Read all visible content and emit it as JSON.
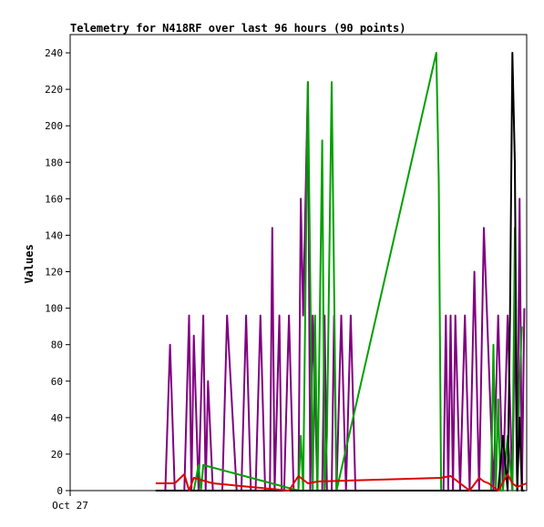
{
  "chart_data": {
    "type": "line",
    "title": "Telemetry for N418RF over last 96 hours (90 points)",
    "xlabel": "",
    "ylabel": "Values",
    "ylim": [
      0,
      250
    ],
    "y_ticks": [
      0,
      20,
      40,
      60,
      80,
      100,
      120,
      140,
      160,
      180,
      200,
      220,
      240
    ],
    "x_tick_labels": [
      "Oct 27"
    ],
    "x_axis_note": "x values are hours elapsed within the 96-hour window; only the Oct 27 tick is labeled",
    "xlim": [
      0,
      96
    ],
    "grid": false,
    "legend": "none",
    "series": [
      {
        "color": "#800080",
        "x": [
          18.0,
          20.0,
          21.0,
          22.0,
          24.0,
          25.0,
          25.5,
          26.0,
          27.0,
          28.0,
          28.5,
          29.0,
          30.0,
          32.0,
          33.0,
          35.0,
          36.0,
          37.0,
          38.0,
          39.0,
          40.0,
          41.0,
          42.0,
          42.5,
          43.0,
          44.0,
          44.5,
          45.0,
          46.0,
          47.0,
          48.0,
          48.5,
          49.0,
          50.0,
          50.5,
          51.0,
          52.0,
          53.0,
          53.5,
          54.0,
          55.0,
          55.5,
          56.0,
          57.0,
          58.0,
          59.0,
          60.0,
          78.5,
          79.0,
          79.5,
          80.0,
          80.5,
          81.0,
          82.0,
          83.0,
          84.0,
          85.0,
          86.0,
          87.0,
          89.0,
          90.0,
          91.0,
          92.0,
          93.0,
          93.5,
          94.0,
          94.5,
          95.0,
          95.5
        ],
        "values": [
          0,
          0,
          80,
          0,
          0,
          96,
          0,
          85,
          0,
          96,
          0,
          60,
          0,
          0,
          96,
          0,
          0,
          96,
          0,
          0,
          96,
          0,
          0,
          144,
          0,
          96,
          0,
          0,
          96,
          0,
          0,
          160,
          96,
          224,
          0,
          96,
          0,
          0,
          96,
          0,
          0,
          96,
          0,
          96,
          0,
          96,
          0,
          0,
          96,
          0,
          96,
          0,
          96,
          0,
          96,
          0,
          120,
          0,
          144,
          0,
          96,
          0,
          96,
          0,
          96,
          0,
          160,
          0,
          100
        ]
      },
      {
        "color": "#00a000",
        "x": [
          26.0,
          27.0,
          27.5,
          28.0,
          48.0,
          48.5,
          49.0,
          50.0,
          51.0,
          51.5,
          52.0,
          53.0,
          53.5,
          54.0,
          55.0,
          56.0,
          77.0,
          77.5,
          78.0,
          88.5,
          89.0,
          89.5,
          90.0,
          90.5,
          91.0,
          92.0,
          93.0,
          93.5,
          94.0,
          94.5,
          95.0
        ],
        "values": [
          0,
          14,
          0,
          14,
          0,
          30,
          0,
          224,
          0,
          96,
          0,
          192,
          0,
          30,
          224,
          0,
          240,
          170,
          0,
          0,
          80,
          0,
          50,
          0,
          0,
          30,
          0,
          144,
          0,
          60,
          90
        ]
      },
      {
        "color": "#000000",
        "x": [
          18.0,
          88.0,
          89.0,
          90.0,
          91.0,
          92.0,
          92.5,
          93.0,
          93.5,
          94.0,
          94.5,
          95.0,
          95.5
        ],
        "values": [
          0,
          0,
          0,
          0,
          30,
          0,
          96,
          240,
          180,
          0,
          40,
          0,
          0
        ]
      },
      {
        "color": "#dd0000",
        "x": [
          18.0,
          22.0,
          24.0,
          25.0,
          26.0,
          30.0,
          46.0,
          48.0,
          50.0,
          52.0,
          78.0,
          80.0,
          84.0,
          86.0,
          87.0,
          88.0,
          90.0,
          92.0,
          93.0,
          94.0,
          95.0,
          96.0
        ],
        "values": [
          4,
          4,
          9,
          0,
          7,
          4,
          0,
          8,
          4,
          5,
          7,
          8,
          0,
          7,
          5,
          4,
          0,
          9,
          4,
          2,
          3,
          4
        ]
      }
    ]
  }
}
